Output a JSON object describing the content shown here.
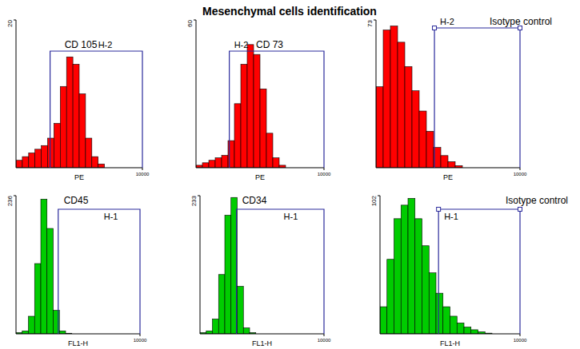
{
  "title": "Mesenchymal cells identification",
  "chart_data": [
    {
      "type": "histogram",
      "title": "CD 105",
      "xlabel": "PE",
      "color": "#ff0000",
      "log": "x",
      "xlim": [
        1,
        10000
      ],
      "xticks": [
        10000
      ],
      "ylim": [
        0,
        20
      ],
      "yticks": [
        20
      ],
      "bins": [
        1,
        1.585,
        2.512,
        3.981,
        6.31,
        10,
        15.85,
        25.12,
        39.81,
        63.1,
        100,
        158.5,
        251.2,
        398.1,
        631,
        1000,
        1585,
        2512,
        3981,
        6310,
        10000
      ],
      "counts": [
        1,
        1.5,
        2,
        2.5,
        3,
        4,
        6,
        11,
        15,
        14,
        10,
        4,
        1.5,
        0.5,
        0,
        0,
        0,
        0,
        0,
        0
      ],
      "gate_label": "H-2",
      "gate": [
        12,
        10000
      ]
    },
    {
      "type": "histogram",
      "title": "CD 73",
      "xlabel": "PE",
      "color": "#ff0000",
      "log": "x",
      "xlim": [
        1,
        10000
      ],
      "xticks": [
        10000
      ],
      "ylim": [
        0,
        60
      ],
      "yticks": [
        60
      ],
      "bins": [
        1,
        1.585,
        2.512,
        3.981,
        6.31,
        10,
        15.85,
        25.12,
        39.81,
        63.1,
        100,
        158.5,
        251.2,
        398.1,
        631,
        1000,
        1585,
        2512,
        3981,
        6310,
        10000
      ],
      "counts": [
        1,
        2,
        3,
        4,
        5,
        11,
        26,
        42,
        50,
        46,
        32,
        14,
        4,
        1,
        0,
        0,
        0,
        0,
        0,
        0
      ],
      "gate_label": "H-2",
      "gate": [
        11,
        10000
      ]
    },
    {
      "type": "histogram",
      "title": "Isotype control",
      "xlabel": "PE",
      "color": "#ff0000",
      "log": "x",
      "xlim": [
        1,
        10000
      ],
      "xticks": [
        10000
      ],
      "ylim": [
        0,
        73
      ],
      "yticks": [
        73
      ],
      "bins": [
        1,
        1.585,
        2.512,
        3.981,
        6.31,
        10,
        15.85,
        25.12,
        39.81,
        63.1,
        100,
        158.5,
        251.2,
        398.1,
        631,
        1000,
        1585,
        2512,
        3981,
        6310,
        10000
      ],
      "counts": [
        40,
        68,
        70,
        62,
        50,
        38,
        28,
        18,
        10,
        6,
        3,
        1,
        0,
        0,
        0,
        0,
        0,
        0,
        0,
        0
      ],
      "gate_label": "H-2",
      "gate": [
        42,
        10000
      ]
    },
    {
      "type": "histogram",
      "title": "CD45",
      "xlabel": "FL1-H",
      "color": "#00cc00",
      "log": "x",
      "xlim": [
        1,
        10000
      ],
      "xticks": [
        10000
      ],
      "ylim": [
        0,
        236
      ],
      "yticks": [
        236
      ],
      "bins": [
        1,
        1.585,
        2.512,
        3.981,
        6.31,
        10,
        15.85,
        25.12,
        39.81,
        63.1,
        100,
        158.5,
        251.2,
        398.1,
        631,
        1000,
        1585,
        2512,
        3981,
        6310,
        10000
      ],
      "counts": [
        2,
        5,
        30,
        120,
        230,
        180,
        40,
        5,
        1,
        0,
        0,
        0,
        0,
        0,
        0,
        0,
        0,
        0,
        0,
        0
      ],
      "gate_label": "H-1",
      "gate": [
        23,
        10000
      ]
    },
    {
      "type": "histogram",
      "title": "CD34",
      "xlabel": "FL1-H",
      "color": "#00cc00",
      "log": "x",
      "xlim": [
        1,
        10000
      ],
      "xticks": [
        10000
      ],
      "ylim": [
        0,
        233
      ],
      "yticks": [
        233
      ],
      "bins": [
        1,
        1.585,
        2.512,
        3.981,
        6.31,
        10,
        15.85,
        25.12,
        39.81,
        63.1,
        100,
        158.5,
        251.2,
        398.1,
        631,
        1000,
        1585,
        2512,
        3981,
        6310,
        10000
      ],
      "counts": [
        2,
        5,
        25,
        100,
        200,
        230,
        80,
        10,
        2,
        0,
        0,
        0,
        0,
        0,
        0,
        0,
        0,
        0,
        0,
        0
      ],
      "gate_label": "H-1",
      "gate": [
        15,
        10000
      ]
    },
    {
      "type": "histogram",
      "title": "Isotype control",
      "xlabel": "FL1-H",
      "color": "#00cc00",
      "log": "x",
      "xlim": [
        1,
        10000
      ],
      "xticks": [
        10000
      ],
      "ylim": [
        0,
        102
      ],
      "yticks": [
        102
      ],
      "bins": [
        1,
        1.585,
        2.512,
        3.981,
        6.31,
        10,
        15.85,
        25.12,
        39.81,
        63.1,
        100,
        158.5,
        251.2,
        398.1,
        631,
        1000,
        1585,
        2512,
        3981,
        6310,
        10000
      ],
      "counts": [
        20,
        55,
        85,
        95,
        100,
        85,
        65,
        45,
        30,
        20,
        13,
        8,
        5,
        3,
        1.5,
        0.5,
        0,
        0,
        0,
        0
      ],
      "gate_label": "H-1",
      "gate": [
        47,
        10000
      ]
    }
  ]
}
